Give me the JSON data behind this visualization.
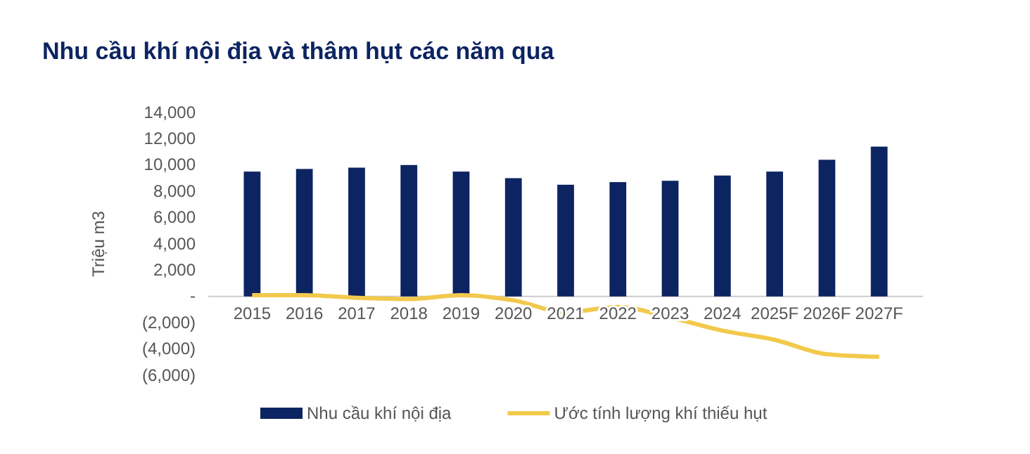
{
  "chart_data": {
    "type": "bar",
    "title": "Nhu cầu khí nội địa và thâm hụt các năm qua",
    "ylabel": "Triệu m3",
    "categories": [
      "2015",
      "2016",
      "2017",
      "2018",
      "2019",
      "2020",
      "2021",
      "2022",
      "2023",
      "2024",
      "2025F",
      "2026F",
      "2027F"
    ],
    "series": [
      {
        "name": "Nhu cầu khí nội địa",
        "color": "#0c2461",
        "values": [
          9500,
          9700,
          9800,
          10000,
          9500,
          9000,
          8500,
          8700,
          8800,
          9200,
          9500,
          10400,
          11400
        ]
      },
      {
        "name": "Ước tính lượng khí thiếu hụt",
        "color": "#f2c94c",
        "type": "line",
        "values": [
          100,
          100,
          -100,
          -200,
          100,
          -300,
          -1200,
          -800,
          -1600,
          -2600,
          -3300,
          -4400,
          -4600
        ]
      }
    ],
    "ylim": [
      -6000,
      14000
    ],
    "yticks": [
      {
        "value": -6000,
        "label": "(6,000)"
      },
      {
        "value": -4000,
        "label": "(4,000)"
      },
      {
        "value": -2000,
        "label": "(2,000)"
      },
      {
        "value": 0,
        "label": "-"
      },
      {
        "value": 2000,
        "label": "2,000"
      },
      {
        "value": 4000,
        "label": "4,000"
      },
      {
        "value": 6000,
        "label": "6,000"
      },
      {
        "value": 8000,
        "label": "8,000"
      },
      {
        "value": 10000,
        "label": "10,000"
      },
      {
        "value": 12000,
        "label": "12,000"
      },
      {
        "value": 14000,
        "label": "14,000"
      }
    ],
    "grid": false,
    "legend": "bottom",
    "line_style": "solid",
    "marker": "none"
  }
}
